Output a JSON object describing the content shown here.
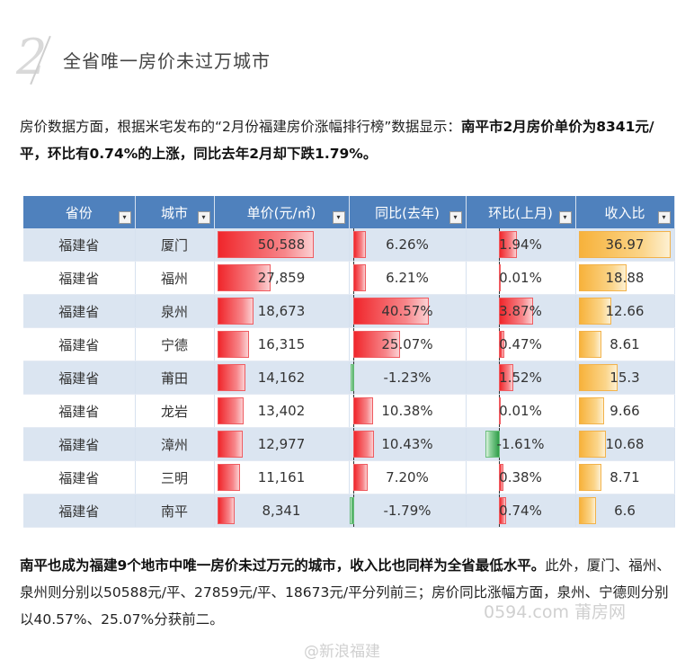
{
  "section": {
    "number": "2",
    "title": "全省唯一房价未过万城市"
  },
  "intro": {
    "normal": "房价数据方面，根据米宅发布的“2月份福建房价涨幅排行榜”数据显示：",
    "bold": "南平市2月房价单价为8341元/平，环比有0.74%的上涨，同比去年2月却下跌1.79%。"
  },
  "table": {
    "headers": [
      "省份",
      "城市",
      "单价(元/㎡)",
      "同比(去年)",
      "环比(上月)",
      "收入比"
    ],
    "rows": [
      {
        "province": "福建省",
        "city": "厦门",
        "price": "50,588",
        "yoy": "6.26%",
        "mom": "1.94%",
        "ratio": "36.97"
      },
      {
        "province": "福建省",
        "city": "福州",
        "price": "27,859",
        "yoy": "6.21%",
        "mom": "0.01%",
        "ratio": "18.88"
      },
      {
        "province": "福建省",
        "city": "泉州",
        "price": "18,673",
        "yoy": "40.57%",
        "mom": "3.87%",
        "ratio": "12.66"
      },
      {
        "province": "福建省",
        "city": "宁德",
        "price": "16,315",
        "yoy": "25.07%",
        "mom": "0.47%",
        "ratio": "8.61"
      },
      {
        "province": "福建省",
        "city": "莆田",
        "price": "14,162",
        "yoy": "-1.23%",
        "mom": "1.52%",
        "ratio": "15.3"
      },
      {
        "province": "福建省",
        "city": "龙岩",
        "price": "13,402",
        "yoy": "10.38%",
        "mom": "0.01%",
        "ratio": "9.66"
      },
      {
        "province": "福建省",
        "city": "漳州",
        "price": "12,977",
        "yoy": "10.43%",
        "mom": "-1.61%",
        "ratio": "10.68"
      },
      {
        "province": "福建省",
        "city": "三明",
        "price": "11,161",
        "yoy": "7.20%",
        "mom": "0.38%",
        "ratio": "8.71"
      },
      {
        "province": "福建省",
        "city": "南平",
        "price": "8,341",
        "yoy": "-1.79%",
        "mom": "0.74%",
        "ratio": "6.6"
      }
    ],
    "colors": {
      "header": "#4f81bd",
      "band": "#dbe5f1",
      "red_bar": "#f0262b",
      "orange_bar": "#f7b23b",
      "green_bar": "#2e9d48"
    }
  },
  "outro": {
    "bold": "南平也成为福建9个地市中唯一房价未过万元的城市，收入比也同样为全省最低水平。",
    "normal": "此外，厦门、福州、泉州则分别以50588元/平、27859元/平、18673元/平分列前三；房价同比涨幅方面，泉州、宁德则分别以40.57%、25.07%分获前二。"
  },
  "watermarks": {
    "site": "0594.com 莆房网",
    "weibo": "@新浪福建"
  }
}
